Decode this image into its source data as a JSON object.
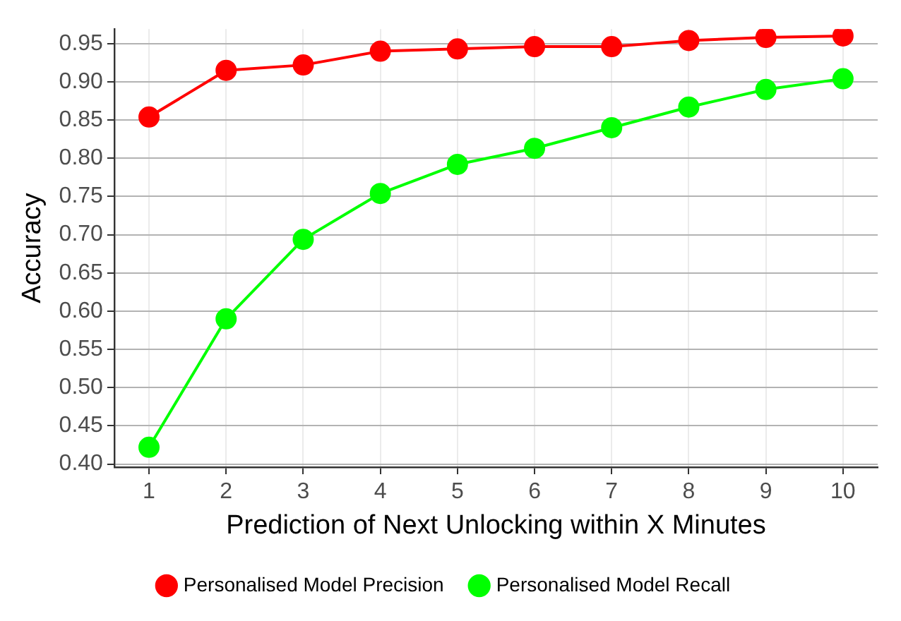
{
  "chart_data": {
    "type": "line",
    "xlabel": "Prediction of Next Unlocking within X Minutes",
    "ylabel": "Accuracy",
    "x": [
      1,
      2,
      3,
      4,
      5,
      6,
      7,
      8,
      9,
      10
    ],
    "series": [
      {
        "name": "Personalised Model Precision",
        "color": "#ff0000",
        "values": [
          0.854,
          0.915,
          0.922,
          0.94,
          0.943,
          0.946,
          0.946,
          0.954,
          0.958,
          0.96
        ]
      },
      {
        "name": "Personalised Model Recall",
        "color": "#00ff00",
        "values": [
          0.422,
          0.59,
          0.694,
          0.754,
          0.792,
          0.813,
          0.84,
          0.867,
          0.89,
          0.904
        ]
      }
    ],
    "xlim": [
      0.55,
      10.45
    ],
    "xticks": [
      1,
      2,
      3,
      4,
      5,
      6,
      7,
      8,
      9,
      10
    ],
    "ylim": [
      0.396,
      0.969
    ],
    "yticks": [
      {
        "value": 0.4,
        "label": "0.40"
      },
      {
        "value": 0.45,
        "label": "0.45"
      },
      {
        "value": 0.5,
        "label": "0.50"
      },
      {
        "value": 0.55,
        "label": "0.55"
      },
      {
        "value": 0.6,
        "label": "0.60"
      },
      {
        "value": 0.65,
        "label": "0.65"
      },
      {
        "value": 0.7,
        "label": "0.70"
      },
      {
        "value": 0.75,
        "label": "0.75"
      },
      {
        "value": 0.8,
        "label": "0.80"
      },
      {
        "value": 0.85,
        "label": "0.85"
      },
      {
        "value": 0.9,
        "label": "0.90"
      },
      {
        "value": 0.95,
        "label": "0.95"
      }
    ],
    "grid": true,
    "legend": "bottom",
    "marker": "circle",
    "line_style": "solid"
  }
}
